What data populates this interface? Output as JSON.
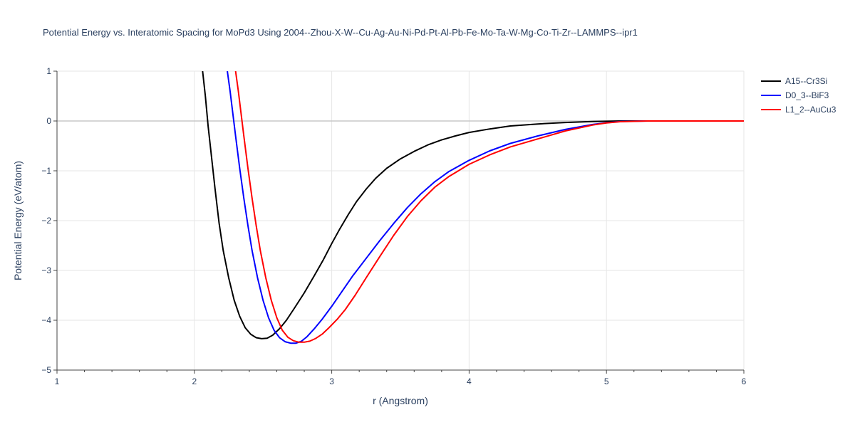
{
  "chart_data": {
    "type": "line",
    "title": "Potential Energy vs. Interatomic Spacing for MoPd3 Using 2004--Zhou-X-W--Cu-Ag-Au-Ni-Pd-Pt-Al-Pb-Fe-Mo-Ta-W-Mg-Co-Ti-Zr--LAMMPS--ipr1",
    "xlabel": "r (Angstrom)",
    "ylabel": "Potential Energy (eV/atom)",
    "xlim": [
      1,
      6
    ],
    "ylim": [
      -5,
      1
    ],
    "xticks": [
      1,
      2,
      3,
      4,
      5,
      6
    ],
    "yticks": [
      -5,
      -4,
      -3,
      -2,
      -1,
      0,
      1
    ],
    "xtick_labels": [
      "1",
      "2",
      "3",
      "4",
      "5",
      "6"
    ],
    "ytick_labels": [
      "−5",
      "−4",
      "−3",
      "−2",
      "−1",
      "0",
      "1"
    ],
    "grid": true,
    "legend_position": "top-right",
    "series": [
      {
        "name": "A15--Cr3Si",
        "color": "#000000",
        "x": [
          2.06,
          2.08,
          2.1,
          2.12,
          2.15,
          2.18,
          2.21,
          2.25,
          2.29,
          2.33,
          2.37,
          2.41,
          2.45,
          2.49,
          2.53,
          2.57,
          2.62,
          2.67,
          2.73,
          2.8,
          2.87,
          2.94,
          3.0,
          3.06,
          3.12,
          3.18,
          3.25,
          3.32,
          3.4,
          3.5,
          3.6,
          3.7,
          3.8,
          3.9,
          4.0,
          4.15,
          4.3,
          4.5,
          4.7,
          4.9,
          5.0,
          5.1,
          5.3,
          5.5,
          5.7,
          6.0
        ],
        "y": [
          1.0,
          0.5,
          -0.1,
          -0.6,
          -1.35,
          -2.05,
          -2.6,
          -3.15,
          -3.6,
          -3.92,
          -4.15,
          -4.28,
          -4.35,
          -4.37,
          -4.36,
          -4.3,
          -4.17,
          -4.0,
          -3.75,
          -3.45,
          -3.12,
          -2.78,
          -2.46,
          -2.16,
          -1.88,
          -1.62,
          -1.37,
          -1.15,
          -0.95,
          -0.76,
          -0.61,
          -0.48,
          -0.38,
          -0.3,
          -0.23,
          -0.16,
          -0.1,
          -0.06,
          -0.03,
          -0.01,
          -0.005,
          0.0,
          0.0,
          0.0,
          0.0,
          0.0
        ]
      },
      {
        "name": "D0_3--BiF3",
        "color": "#0000ff",
        "x": [
          2.24,
          2.26,
          2.28,
          2.3,
          2.33,
          2.36,
          2.39,
          2.42,
          2.46,
          2.5,
          2.54,
          2.58,
          2.62,
          2.66,
          2.7,
          2.74,
          2.78,
          2.82,
          2.87,
          2.93,
          3.0,
          3.07,
          3.15,
          3.25,
          3.35,
          3.45,
          3.55,
          3.65,
          3.75,
          3.85,
          4.0,
          4.15,
          4.3,
          4.5,
          4.7,
          4.9,
          5.0,
          5.1,
          5.3,
          5.5,
          5.7,
          6.0
        ],
        "y": [
          1.0,
          0.6,
          0.15,
          -0.3,
          -0.95,
          -1.55,
          -2.1,
          -2.6,
          -3.15,
          -3.6,
          -3.95,
          -4.2,
          -4.35,
          -4.43,
          -4.46,
          -4.46,
          -4.42,
          -4.33,
          -4.18,
          -3.98,
          -3.72,
          -3.44,
          -3.12,
          -2.76,
          -2.4,
          -2.06,
          -1.74,
          -1.46,
          -1.22,
          -1.02,
          -0.79,
          -0.6,
          -0.45,
          -0.3,
          -0.17,
          -0.07,
          -0.035,
          -0.01,
          0.0,
          0.0,
          0.0,
          0.0
        ]
      },
      {
        "name": "L1_2--AuCu3",
        "color": "#ff0000",
        "x": [
          2.3,
          2.32,
          2.34,
          2.36,
          2.39,
          2.42,
          2.45,
          2.48,
          2.52,
          2.56,
          2.6,
          2.64,
          2.68,
          2.72,
          2.76,
          2.8,
          2.84,
          2.88,
          2.93,
          2.98,
          3.04,
          3.1,
          3.17,
          3.25,
          3.35,
          3.45,
          3.55,
          3.65,
          3.75,
          3.85,
          4.0,
          4.15,
          4.3,
          4.5,
          4.7,
          4.9,
          5.0,
          5.1,
          5.3,
          5.5,
          5.7,
          6.0
        ],
        "y": [
          1.0,
          0.6,
          0.15,
          -0.3,
          -0.95,
          -1.55,
          -2.1,
          -2.6,
          -3.15,
          -3.6,
          -3.95,
          -4.2,
          -4.34,
          -4.41,
          -4.44,
          -4.44,
          -4.42,
          -4.37,
          -4.28,
          -4.15,
          -3.98,
          -3.78,
          -3.5,
          -3.15,
          -2.72,
          -2.3,
          -1.92,
          -1.6,
          -1.33,
          -1.12,
          -0.87,
          -0.68,
          -0.52,
          -0.36,
          -0.2,
          -0.08,
          -0.04,
          -0.015,
          0.0,
          0.0,
          0.0,
          0.0
        ]
      }
    ]
  }
}
